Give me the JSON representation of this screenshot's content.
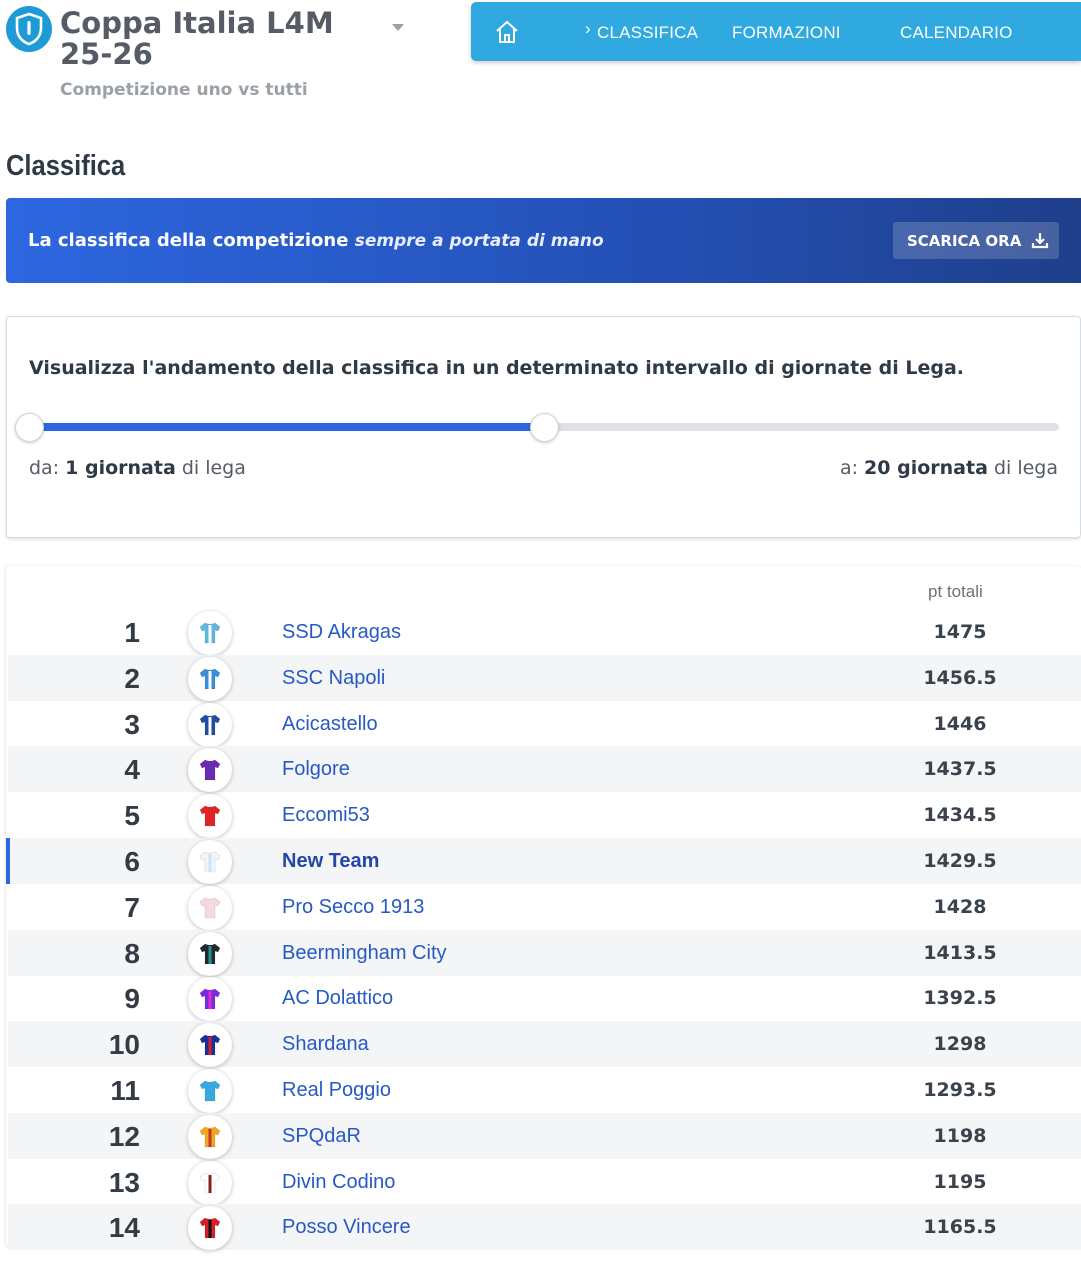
{
  "header": {
    "competition_title_line1": "Coppa Italia L4M",
    "competition_title_line2": "25-26",
    "competition_subtitle": "Competizione uno vs tutti"
  },
  "nav": {
    "items": [
      {
        "label": "CLASSIFICA",
        "active": true
      },
      {
        "label": "FORMAZIONI"
      },
      {
        "label": "CALENDARIO"
      }
    ]
  },
  "page_title": "Classifica",
  "banner": {
    "text_bold": "La classifica della competizione",
    "text_italic": "sempre a portata di mano",
    "button_label": "SCARICA ORA"
  },
  "range": {
    "title": "Visualizza l'andamento della classifica in un determinato intervallo di giornate di Lega.",
    "from_prefix": "da:",
    "from_value": "1 giornata",
    "from_suffix": "di lega",
    "to_prefix": "a:",
    "to_value": "20 giornata",
    "to_suffix": "di lega",
    "fill_fraction": 0.5
  },
  "standings": {
    "points_header": "pt totali",
    "rows": [
      {
        "pos": "1",
        "team": "SSD Akragas",
        "points": "1475",
        "shirt": [
          "#5fb6e0",
          "#ffffff"
        ]
      },
      {
        "pos": "2",
        "team": "SSC Napoli",
        "points": "1456.5",
        "shirt": [
          "#3a8fd8",
          "#ffffff"
        ]
      },
      {
        "pos": "3",
        "team": "Acicastello",
        "points": "1446",
        "shirt": [
          "#1f4fa0",
          "#ffffff"
        ]
      },
      {
        "pos": "4",
        "team": "Folgore",
        "points": "1437.5",
        "shirt": [
          "#6b2bb0",
          "#6b2bb0"
        ]
      },
      {
        "pos": "5",
        "team": "Eccomi53",
        "points": "1434.5",
        "shirt": [
          "#e02424",
          "#e02424"
        ]
      },
      {
        "pos": "6",
        "team": "New Team",
        "points": "1429.5",
        "shirt": [
          "#f2f6fb",
          "#cfe3f5"
        ],
        "me": true
      },
      {
        "pos": "7",
        "team": "Pro Secco 1913",
        "points": "1428",
        "shirt": [
          "#f5d9dd",
          "#f5d9dd"
        ]
      },
      {
        "pos": "8",
        "team": "Beermingham City",
        "points": "1413.5",
        "shirt": [
          "#1e2a30",
          "#2a8f8f"
        ]
      },
      {
        "pos": "9",
        "team": "AC Dolattico",
        "points": "1392.5",
        "shirt": [
          "#7a2be0",
          "#e02bd0"
        ]
      },
      {
        "pos": "10",
        "team": "Shardana",
        "points": "1298",
        "shirt": [
          "#1a2f9a",
          "#d81f26"
        ]
      },
      {
        "pos": "11",
        "team": "Real Poggio",
        "points": "1293.5",
        "shirt": [
          "#3aa8e0",
          "#3aa8e0"
        ]
      },
      {
        "pos": "12",
        "team": "SPQdaR",
        "points": "1198",
        "shirt": [
          "#f2a51f",
          "#c0392b"
        ]
      },
      {
        "pos": "13",
        "team": "Divin Codino",
        "points": "1195",
        "shirt": [
          "#ffffff",
          "#8b1d1d"
        ]
      },
      {
        "pos": "14",
        "team": "Posso Vincere",
        "points": "1165.5",
        "shirt": [
          "#d81f26",
          "#111111"
        ]
      }
    ]
  },
  "colors": {
    "nav_bg": "#2fa9e0",
    "banner_start": "#2d67e0",
    "banner_end": "#1f3f8a",
    "link": "#2659c6"
  }
}
